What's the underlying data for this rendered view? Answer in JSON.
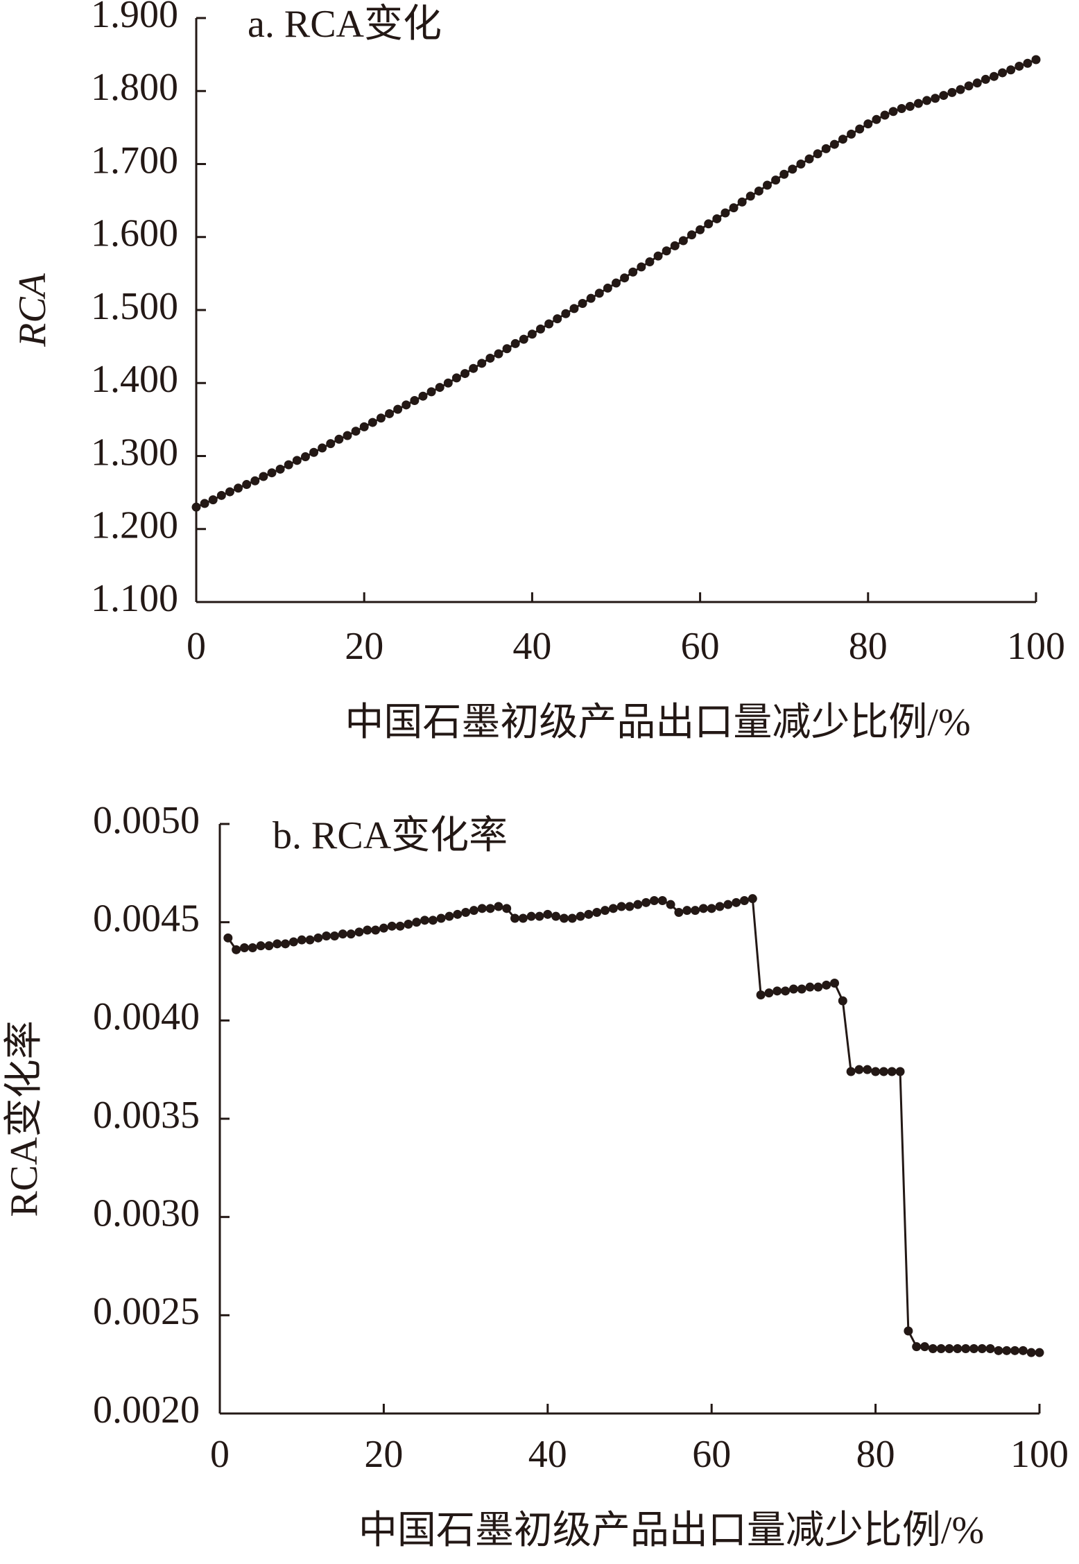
{
  "chart_data": [
    {
      "type": "line",
      "title": "a. RCA变化",
      "x_label": "中国石墨初级产品出口量减少比例/%",
      "y_label": "RCA",
      "color": "#231815",
      "x": [
        0,
        1,
        2,
        3,
        4,
        5,
        6,
        7,
        8,
        9,
        10,
        11,
        12,
        13,
        14,
        15,
        16,
        17,
        18,
        19,
        20,
        21,
        22,
        23,
        24,
        25,
        26,
        27,
        28,
        29,
        30,
        31,
        32,
        33,
        34,
        35,
        36,
        37,
        38,
        39,
        40,
        41,
        42,
        43,
        44,
        45,
        46,
        47,
        48,
        49,
        50,
        51,
        52,
        53,
        54,
        55,
        56,
        57,
        58,
        59,
        60,
        61,
        62,
        63,
        64,
        65,
        66,
        67,
        68,
        69,
        70,
        71,
        72,
        73,
        74,
        75,
        76,
        77,
        78,
        79,
        80,
        81,
        82,
        83,
        84,
        85,
        86,
        87,
        88,
        89,
        90,
        91,
        92,
        93,
        94,
        95,
        96,
        97,
        98,
        99,
        100
      ],
      "values": [
        1.23,
        1.235,
        1.24,
        1.246,
        1.251,
        1.256,
        1.261,
        1.266,
        1.272,
        1.277,
        1.282,
        1.288,
        1.294,
        1.299,
        1.305,
        1.311,
        1.317,
        1.323,
        1.328,
        1.334,
        1.34,
        1.346,
        1.352,
        1.358,
        1.364,
        1.37,
        1.376,
        1.382,
        1.388,
        1.394,
        1.4,
        1.407,
        1.413,
        1.42,
        1.427,
        1.434,
        1.44,
        1.447,
        1.454,
        1.46,
        1.467,
        1.474,
        1.481,
        1.488,
        1.495,
        1.502,
        1.509,
        1.516,
        1.523,
        1.53,
        1.537,
        1.544,
        1.552,
        1.559,
        1.566,
        1.574,
        1.581,
        1.588,
        1.595,
        1.603,
        1.61,
        1.618,
        1.625,
        1.633,
        1.64,
        1.648,
        1.656,
        1.663,
        1.671,
        1.678,
        1.686,
        1.693,
        1.7,
        1.707,
        1.714,
        1.721,
        1.727,
        1.734,
        1.741,
        1.748,
        1.755,
        1.761,
        1.767,
        1.772,
        1.776,
        1.779,
        1.783,
        1.787,
        1.79,
        1.794,
        1.798,
        1.802,
        1.807,
        1.811,
        1.816,
        1.82,
        1.825,
        1.829,
        1.834,
        1.838,
        1.843
      ],
      "xlim": [
        0,
        100
      ],
      "xticks": [
        0,
        20,
        40,
        60,
        80,
        100
      ],
      "ylim": [
        1.1,
        1.9
      ],
      "yticks": [
        {
          "value": 1.1,
          "label": "1.100"
        },
        {
          "value": 1.2,
          "label": "1.200"
        },
        {
          "value": 1.3,
          "label": "1.300"
        },
        {
          "value": 1.4,
          "label": "1.400"
        },
        {
          "value": 1.5,
          "label": "1.500"
        },
        {
          "value": 1.6,
          "label": "1.600"
        },
        {
          "value": 1.7,
          "label": "1.700"
        },
        {
          "value": 1.8,
          "label": "1.800"
        },
        {
          "value": 1.9,
          "label": "1.900"
        }
      ]
    },
    {
      "type": "line",
      "title": "b. RCA变化率",
      "x_label": "中国石墨初级产品出口量减少比例/%",
      "y_label": "RCA变化率",
      "color": "#231815",
      "x": [
        1,
        2,
        3,
        4,
        5,
        6,
        7,
        8,
        9,
        10,
        11,
        12,
        13,
        14,
        15,
        16,
        17,
        18,
        19,
        20,
        21,
        22,
        23,
        24,
        25,
        26,
        27,
        28,
        29,
        30,
        31,
        32,
        33,
        34,
        35,
        36,
        37,
        38,
        39,
        40,
        41,
        42,
        43,
        44,
        45,
        46,
        47,
        48,
        49,
        50,
        51,
        52,
        53,
        54,
        55,
        56,
        57,
        58,
        59,
        60,
        61,
        62,
        63,
        64,
        65,
        66,
        67,
        68,
        69,
        70,
        71,
        72,
        73,
        74,
        75,
        76,
        77,
        78,
        79,
        80,
        81,
        82,
        83,
        84,
        85,
        86,
        87,
        88,
        89,
        90,
        91,
        92,
        93,
        94,
        95,
        96,
        97,
        98,
        99,
        100
      ],
      "values": [
        0.00442,
        0.00436,
        0.00437,
        0.00437,
        0.00438,
        0.00438,
        0.00439,
        0.00439,
        0.0044,
        0.00441,
        0.00441,
        0.00442,
        0.00443,
        0.00443,
        0.00444,
        0.00444,
        0.00445,
        0.00446,
        0.00446,
        0.00447,
        0.00448,
        0.00448,
        0.00449,
        0.0045,
        0.00451,
        0.00451,
        0.00452,
        0.00453,
        0.00454,
        0.00455,
        0.00456,
        0.00457,
        0.00457,
        0.00458,
        0.00457,
        0.00452,
        0.00452,
        0.00453,
        0.00453,
        0.00454,
        0.00453,
        0.00452,
        0.00452,
        0.00453,
        0.00454,
        0.00455,
        0.00456,
        0.00457,
        0.00458,
        0.00458,
        0.00459,
        0.0046,
        0.00461,
        0.00461,
        0.00459,
        0.00455,
        0.00456,
        0.00456,
        0.00457,
        0.00457,
        0.00458,
        0.00459,
        0.0046,
        0.00461,
        0.00462,
        0.00413,
        0.00414,
        0.00415,
        0.00415,
        0.00416,
        0.00416,
        0.00417,
        0.00417,
        0.00418,
        0.00419,
        0.0041,
        0.00374,
        0.00375,
        0.00375,
        0.00374,
        0.00374,
        0.00374,
        0.00374,
        0.00242,
        0.00234,
        0.00234,
        0.00233,
        0.00233,
        0.00233,
        0.00233,
        0.00233,
        0.00233,
        0.00233,
        0.00233,
        0.00232,
        0.00232,
        0.00232,
        0.00232,
        0.00231,
        0.00231
      ],
      "xlim": [
        0,
        100
      ],
      "xticks": [
        0,
        20,
        40,
        60,
        80,
        100
      ],
      "ylim": [
        0.002,
        0.005
      ],
      "yticks": [
        {
          "value": 0.002,
          "label": "0.0020"
        },
        {
          "value": 0.0025,
          "label": "0.0025"
        },
        {
          "value": 0.003,
          "label": "0.0030"
        },
        {
          "value": 0.0035,
          "label": "0.0035"
        },
        {
          "value": 0.004,
          "label": "0.0040"
        },
        {
          "value": 0.0045,
          "label": "0.0045"
        },
        {
          "value": 0.005,
          "label": "0.0050"
        }
      ]
    }
  ]
}
